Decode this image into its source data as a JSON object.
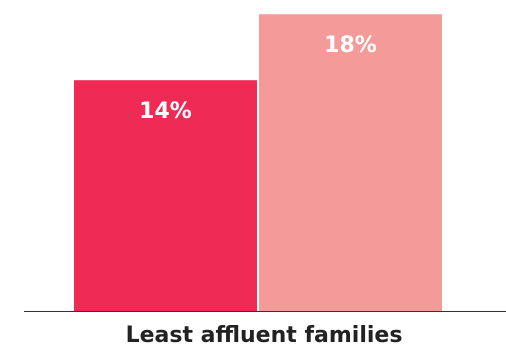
{
  "chart_data": {
    "type": "bar",
    "categories": [
      "Least affluent families"
    ],
    "series": [
      {
        "values": [
          14
        ],
        "color": "#ee2a55",
        "label": "14%"
      },
      {
        "values": [
          18
        ],
        "color": "#f49a99",
        "label": "18%"
      }
    ],
    "title": "",
    "xlabel": "",
    "ylabel": "",
    "ylim": [
      0,
      18.5
    ],
    "grid": false,
    "axis_color": "#333333"
  }
}
